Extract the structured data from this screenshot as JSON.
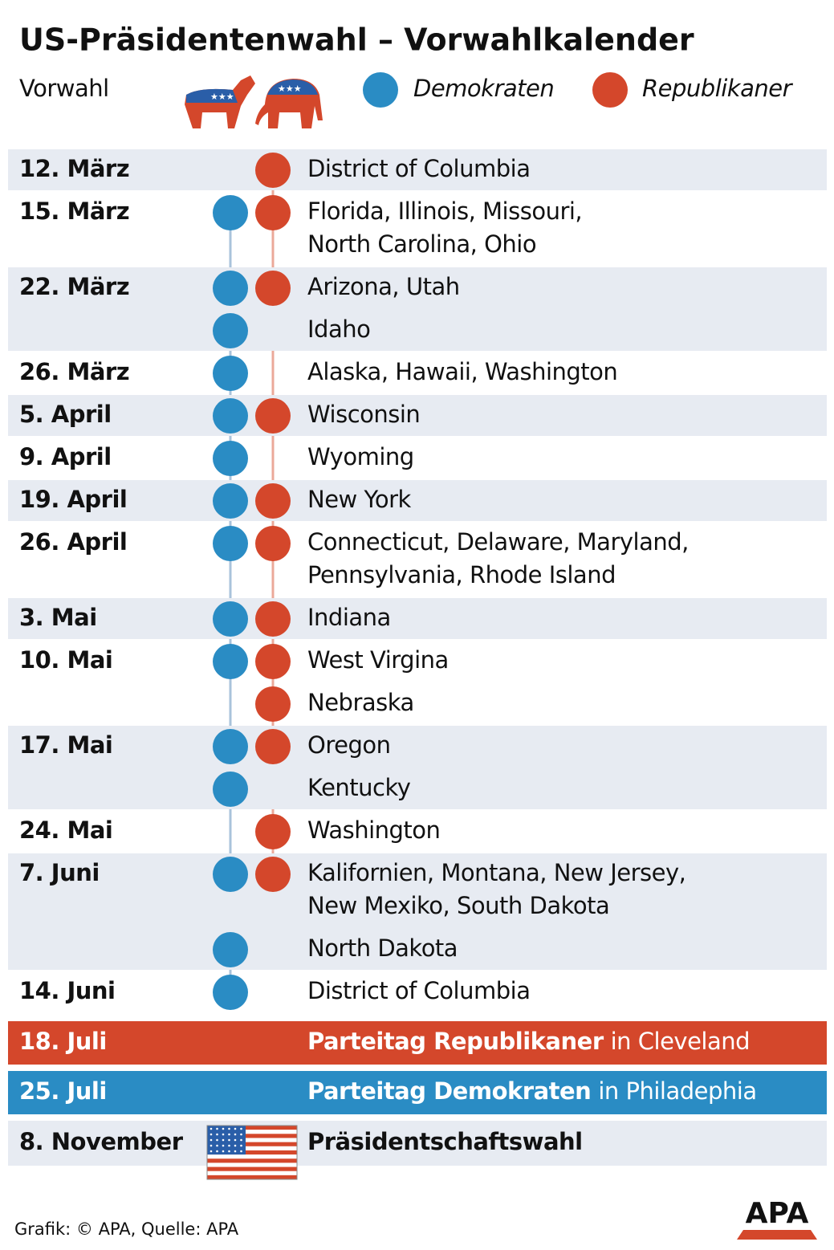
{
  "header": {
    "title": "US-Präsidentenwahl – Vorwahlkalender",
    "legend": {
      "label": "Vorwahl",
      "democrats": "Demokraten",
      "republicans": "Republikaner"
    }
  },
  "rows": [
    {
      "date": "12. März",
      "entries": [
        {
          "dem": false,
          "rep": true,
          "lines": [
            "District of Columbia"
          ]
        }
      ]
    },
    {
      "date": "15. März",
      "entries": [
        {
          "dem": true,
          "rep": true,
          "lines": [
            "Florida, Illinois, Missouri,",
            "North Carolina, Ohio"
          ]
        }
      ]
    },
    {
      "date": "22. März",
      "entries": [
        {
          "dem": true,
          "rep": true,
          "lines": [
            "Arizona, Utah"
          ]
        },
        {
          "dem": true,
          "rep": false,
          "lines": [
            "Idaho"
          ]
        }
      ]
    },
    {
      "date": "26. März",
      "entries": [
        {
          "dem": true,
          "rep": false,
          "lines": [
            "Alaska, Hawaii, Washington"
          ]
        }
      ]
    },
    {
      "date": "5. April",
      "entries": [
        {
          "dem": true,
          "rep": true,
          "lines": [
            "Wisconsin"
          ]
        }
      ]
    },
    {
      "date": "9. April",
      "entries": [
        {
          "dem": true,
          "rep": false,
          "lines": [
            "Wyoming"
          ]
        }
      ]
    },
    {
      "date": "19. April",
      "entries": [
        {
          "dem": true,
          "rep": true,
          "lines": [
            "New York"
          ]
        }
      ]
    },
    {
      "date": "26. April",
      "entries": [
        {
          "dem": true,
          "rep": true,
          "lines": [
            "Connecticut, Delaware, Maryland,",
            "Pennsylvania, Rhode Island"
          ]
        }
      ]
    },
    {
      "date": "3. Mai",
      "entries": [
        {
          "dem": true,
          "rep": true,
          "lines": [
            "Indiana"
          ]
        }
      ]
    },
    {
      "date": "10. Mai",
      "entries": [
        {
          "dem": true,
          "rep": true,
          "lines": [
            "West Virgina"
          ]
        },
        {
          "dem": false,
          "rep": true,
          "lines": [
            "Nebraska"
          ]
        }
      ]
    },
    {
      "date": "17. Mai",
      "entries": [
        {
          "dem": true,
          "rep": true,
          "lines": [
            "Oregon"
          ]
        },
        {
          "dem": true,
          "rep": false,
          "lines": [
            "Kentucky"
          ]
        }
      ]
    },
    {
      "date": "24. Mai",
      "entries": [
        {
          "dem": false,
          "rep": true,
          "lines": [
            "Washington"
          ]
        }
      ]
    },
    {
      "date": "7. Juni",
      "entries": [
        {
          "dem": true,
          "rep": true,
          "lines": [
            "Kalifornien, Montana, New Jersey,",
            "New Mexiko, South Dakota"
          ]
        },
        {
          "dem": true,
          "rep": false,
          "lines": [
            "North Dakota"
          ]
        }
      ]
    },
    {
      "date": "14. Juni",
      "entries": [
        {
          "dem": true,
          "rep": false,
          "lines": [
            "District of Columbia"
          ]
        }
      ]
    }
  ],
  "conventions": [
    {
      "date": "18. Juli",
      "party": "rep",
      "bold": "Parteitag Republikaner",
      "rest": "in Cleveland"
    },
    {
      "date": "25. Juli",
      "party": "dem",
      "bold": "Parteitag Demokraten",
      "rest": "in Philadephia"
    }
  ],
  "election": {
    "date": "8. November",
    "text": "Präsidentschaftswahl"
  },
  "footer": {
    "credit": "Grafik: © APA, Quelle: APA",
    "logo": "APA"
  }
}
